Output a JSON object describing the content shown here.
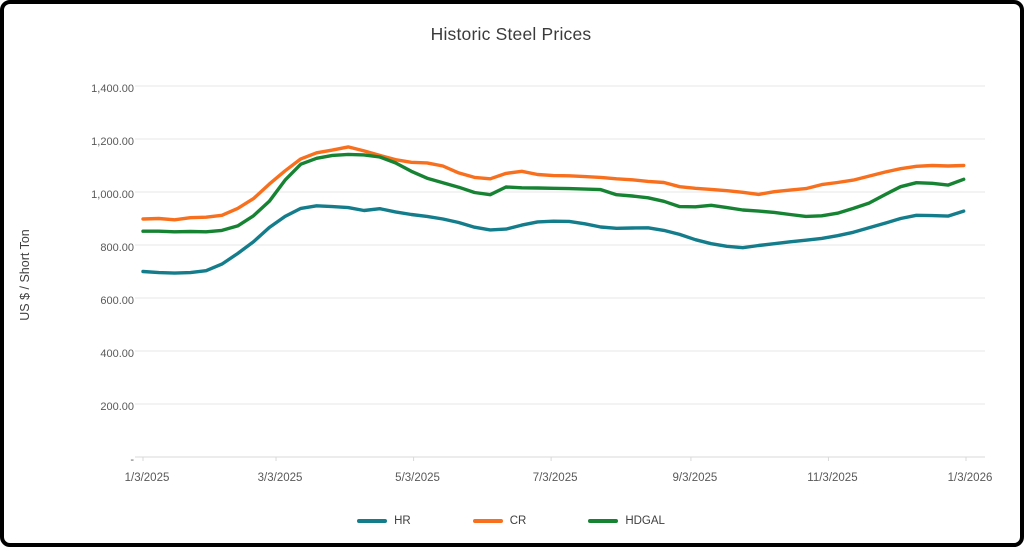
{
  "window": {
    "background": "#ffffff",
    "border_color": "#000000"
  },
  "chart_data": {
    "type": "line",
    "title": "Historic Steel Prices",
    "xlabel": "",
    "ylabel": "US $ / Short Ton",
    "ylim": [
      0,
      1400
    ],
    "grid": "horizontal-only",
    "legend_position": "bottom-center",
    "x_total_days": 365,
    "point_interval_days": 7,
    "y_ticks": [
      {
        "value": 1400,
        "label": "1,400.00"
      },
      {
        "value": 1200,
        "label": "1,200.00"
      },
      {
        "value": 1000,
        "label": "1,000.00"
      },
      {
        "value": 800,
        "label": "800.00"
      },
      {
        "value": 600,
        "label": "600.00"
      },
      {
        "value": 400,
        "label": "400.00"
      },
      {
        "value": 200,
        "label": "200.00"
      },
      {
        "value": 0,
        "label": "-"
      }
    ],
    "x_ticks": [
      {
        "day": 0,
        "label": "1/3/2025"
      },
      {
        "day": 59,
        "label": "3/3/2025"
      },
      {
        "day": 120,
        "label": "5/3/2025"
      },
      {
        "day": 181,
        "label": "7/3/2025"
      },
      {
        "day": 243,
        "label": "9/3/2025"
      },
      {
        "day": 304,
        "label": "11/3/2025"
      },
      {
        "day": 365,
        "label": "1/3/2026"
      }
    ],
    "series": [
      {
        "name": "HR",
        "color": "#147D8C",
        "values": [
          700,
          696,
          694,
          696,
          703,
          728,
          768,
          812,
          866,
          908,
          938,
          948,
          945,
          941,
          930,
          937,
          925,
          915,
          908,
          898,
          885,
          867,
          857,
          860,
          875,
          887,
          890,
          889,
          880,
          868,
          863,
          864,
          865,
          855,
          840,
          820,
          805,
          795,
          790,
          798,
          805,
          812,
          818,
          825,
          835,
          848,
          865,
          882,
          900,
          912,
          911,
          909,
          928
        ]
      },
      {
        "name": "CR",
        "color": "#F8701E",
        "values": [
          898,
          900,
          895,
          903,
          905,
          912,
          938,
          975,
          1030,
          1080,
          1125,
          1148,
          1158,
          1170,
          1155,
          1138,
          1122,
          1112,
          1110,
          1098,
          1072,
          1055,
          1050,
          1070,
          1078,
          1066,
          1062,
          1061,
          1058,
          1055,
          1050,
          1046,
          1040,
          1036,
          1020,
          1014,
          1010,
          1005,
          999,
          991,
          1001,
          1007,
          1013,
          1028,
          1036,
          1045,
          1060,
          1075,
          1088,
          1097,
          1100,
          1098,
          1100
        ]
      },
      {
        "name": "HDGAL",
        "color": "#168333",
        "values": [
          852,
          852,
          850,
          851,
          850,
          855,
          872,
          910,
          965,
          1045,
          1105,
          1127,
          1138,
          1142,
          1140,
          1132,
          1110,
          1078,
          1052,
          1035,
          1018,
          998,
          990,
          1019,
          1016,
          1015,
          1014,
          1013,
          1011,
          1009,
          990,
          985,
          978,
          965,
          945,
          944,
          950,
          941,
          932,
          928,
          923,
          915,
          908,
          910,
          920,
          938,
          958,
          990,
          1020,
          1035,
          1033,
          1026,
          1048
        ]
      }
    ],
    "axis_colors": {
      "grid": "#E7E7E7",
      "axis_line": "#D9D9D9",
      "tick_text": "#595959",
      "title_text": "#3B3B3B"
    }
  }
}
